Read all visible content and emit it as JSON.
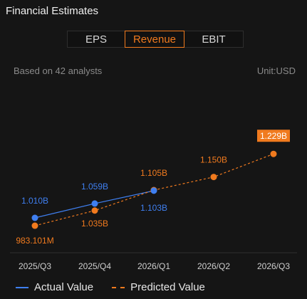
{
  "header": {
    "title": "Financial Estimates"
  },
  "tabs": [
    {
      "label": "EPS",
      "active": false
    },
    {
      "label": "Revenue",
      "active": true
    },
    {
      "label": "EBIT",
      "active": false
    }
  ],
  "meta": {
    "analysts": "Based on 42 analysts",
    "unit": "Unit:USD"
  },
  "colors": {
    "actual": "#3f7ff0",
    "predicted": "#f07a1e",
    "background": "#151515"
  },
  "chart_data": {
    "type": "line",
    "categories": [
      "2025/Q3",
      "2025/Q4",
      "2026/Q1",
      "2026/Q2",
      "2026/Q3"
    ],
    "series": [
      {
        "name": "Actual Value",
        "values": [
          1.01,
          1.059,
          1.103,
          null,
          null
        ],
        "labels": [
          "1.010B",
          "1.059B",
          "1.103B",
          null,
          null
        ],
        "style": "solid"
      },
      {
        "name": "Predicted Value",
        "values": [
          0.983101,
          1.035,
          1.105,
          1.15,
          1.229
        ],
        "labels": [
          "983.101M",
          "1.035B",
          "1.105B",
          "1.150B",
          "1.229B"
        ],
        "style": "dashed"
      }
    ],
    "highlight": {
      "series": 1,
      "index": 4
    },
    "ylim": [
      0.9,
      1.3
    ],
    "grid": false
  }
}
